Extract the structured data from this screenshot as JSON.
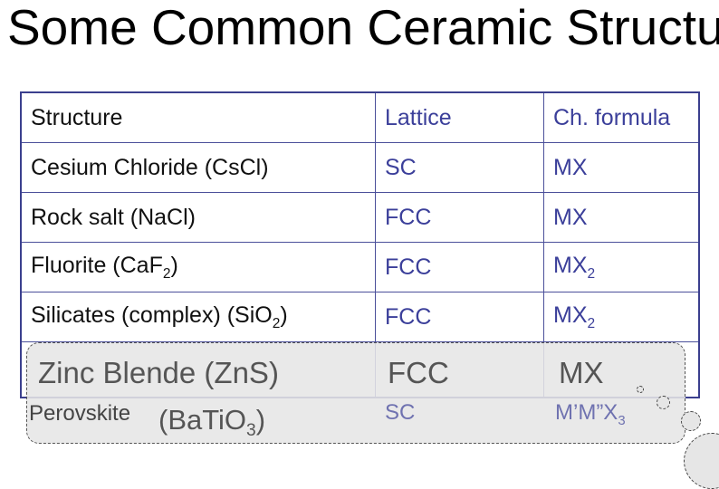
{
  "title": "Some Common Ceramic Structur",
  "table": {
    "headers": [
      "Structure",
      "Lattice",
      "Ch. formula"
    ],
    "rows": [
      {
        "structure": "Cesium Chloride (CsCl)",
        "lattice": "SC",
        "formula": "MX"
      },
      {
        "structure": "Rock salt (NaCl)",
        "lattice": "FCC",
        "formula": "MX"
      },
      {
        "structure_pre": "Fluorite (CaF",
        "structure_sub": "2",
        "structure_post": ")",
        "lattice": "FCC",
        "formula_pre": "MX",
        "formula_sub": "2"
      },
      {
        "structure_pre": "Silicates (complex) (SiO",
        "structure_sub": "2",
        "structure_post": ")",
        "lattice": "FCC",
        "formula_pre": "MX",
        "formula_sub": "2"
      }
    ]
  },
  "callout": {
    "blende_name": "Zinc Blende (ZnS)",
    "blende_lattice": "FCC",
    "blende_formula": "MX",
    "perovskite_name": "Perovskite",
    "perovskite_formula_pre": "(BaTiO",
    "perovskite_formula_sub": "3",
    "perovskite_formula_post": ")",
    "perovskite_lattice": "SC",
    "perovskite_chformula_pre": "M’M”X",
    "perovskite_chformula_sub": "3"
  },
  "colors": {
    "table_border": "#3b3f8e",
    "table_text_accent": "#3b3f9a",
    "callout_fill": "#e6e6e6"
  }
}
